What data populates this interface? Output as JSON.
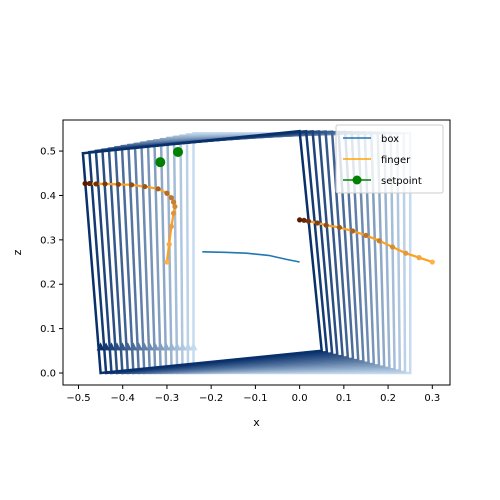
{
  "chart_data": {
    "type": "line",
    "title": "",
    "xlabel": "x",
    "ylabel": "z",
    "xlim": [
      -0.535,
      0.34
    ],
    "ylim": [
      -0.027,
      0.57
    ],
    "x_ticks": [
      -0.5,
      -0.4,
      -0.3,
      -0.2,
      -0.1,
      0.0,
      0.1,
      0.2,
      0.3
    ],
    "x_tick_labels": [
      "−0.5",
      "−0.4",
      "−0.3",
      "−0.2",
      "−0.1",
      "0.0",
      "0.1",
      "0.2",
      "0.3"
    ],
    "y_ticks": [
      0.0,
      0.1,
      0.2,
      0.3,
      0.4,
      0.5
    ],
    "y_tick_labels": [
      "0.0",
      "0.1",
      "0.2",
      "0.3",
      "0.4",
      "0.5"
    ],
    "grid": false,
    "legend_position": "top-right",
    "box_frames": {
      "count": 18,
      "gradient_colors": [
        "#c6dbef",
        "#08306b"
      ],
      "corners_start": [
        [
          -0.24,
          0.0
        ],
        [
          0.25,
          0.0
        ],
        [
          0.25,
          0.54
        ],
        [
          -0.24,
          0.54
        ]
      ],
      "corners_end": [
        [
          -0.45,
          0.0
        ],
        [
          0.05,
          0.05
        ],
        [
          0.0,
          0.545
        ],
        [
          -0.49,
          0.495
        ]
      ]
    },
    "series": [
      {
        "name": "box",
        "color": "#1f77b4",
        "x": [
          -0.22,
          -0.17,
          -0.12,
          -0.07,
          -0.03,
          0.0
        ],
        "y": [
          0.273,
          0.272,
          0.27,
          0.265,
          0.256,
          0.25
        ]
      },
      {
        "name": "finger",
        "color": "#ff9f1c",
        "marker_color": "#5a1a00",
        "x": [
          -0.3,
          -0.295,
          -0.29,
          -0.285,
          -0.282,
          -0.285,
          -0.29,
          -0.3,
          -0.32,
          -0.35,
          -0.38,
          -0.41,
          -0.44,
          -0.46,
          -0.475,
          -0.485
        ],
        "y": [
          0.25,
          0.29,
          0.33,
          0.36,
          0.375,
          0.385,
          0.395,
          0.405,
          0.415,
          0.42,
          0.424,
          0.425,
          0.426,
          0.426,
          0.427,
          0.427
        ]
      },
      {
        "name": "finger",
        "color": "#ff9f1c",
        "marker_color": "#5a1a00",
        "x": [
          0.3,
          0.27,
          0.24,
          0.21,
          0.18,
          0.15,
          0.12,
          0.09,
          0.06,
          0.04,
          0.02,
          0.01,
          0.0
        ],
        "y": [
          0.25,
          0.26,
          0.27,
          0.284,
          0.298,
          0.31,
          0.32,
          0.328,
          0.333,
          0.338,
          0.342,
          0.344,
          0.345
        ]
      },
      {
        "name": "setpoint",
        "color": "#008000",
        "x": [
          -0.315,
          -0.275
        ],
        "y": [
          0.475,
          0.498
        ]
      }
    ],
    "legend": [
      {
        "label": "box",
        "color": "#1f77b4",
        "marker": false
      },
      {
        "label": "finger",
        "color": "#ffa500",
        "marker": false
      },
      {
        "label": "setpoint",
        "color": "#008000",
        "marker": true
      }
    ]
  }
}
